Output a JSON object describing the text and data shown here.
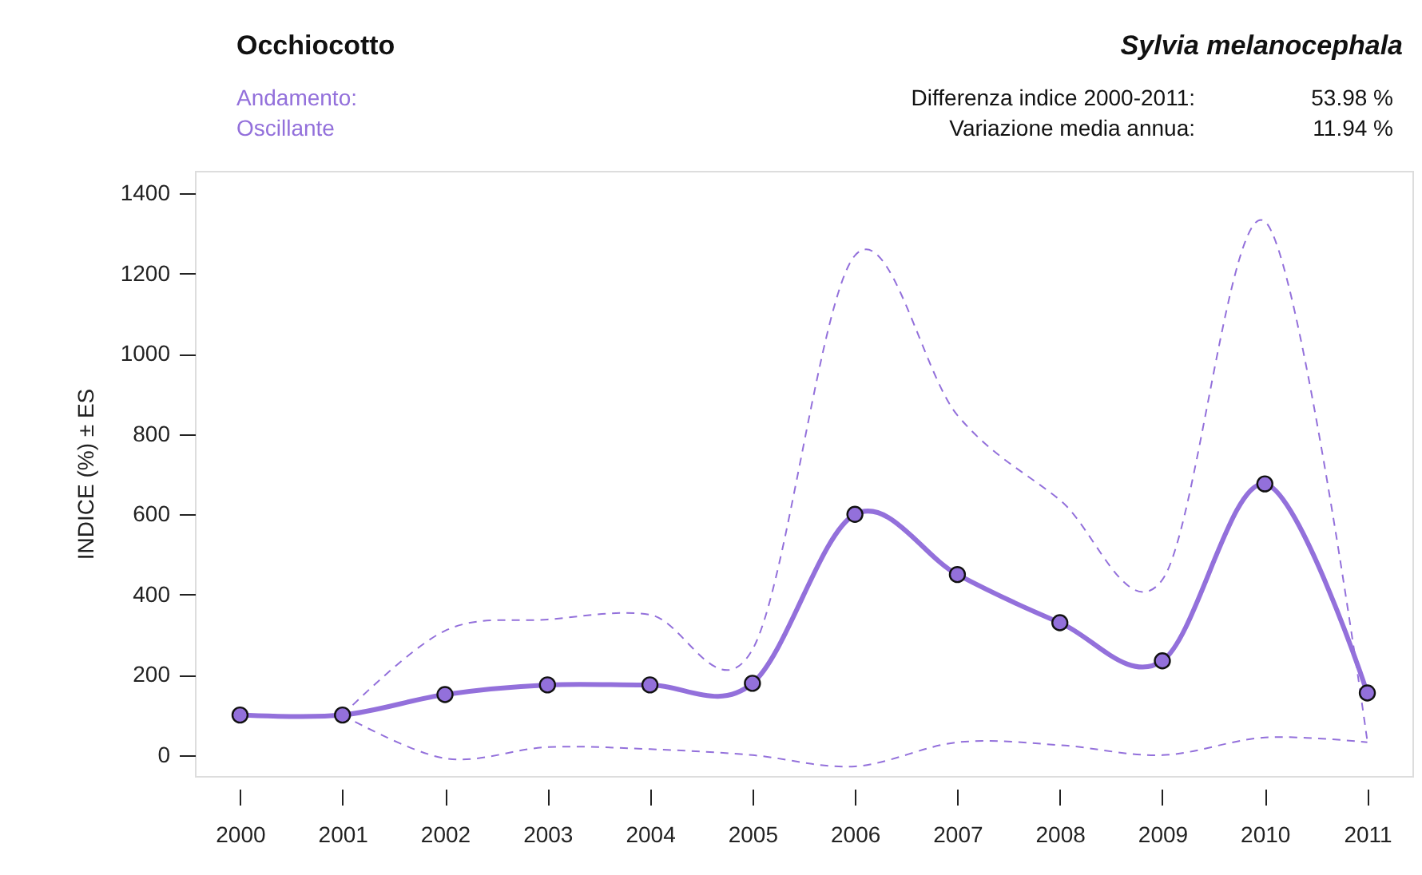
{
  "chart_data": {
    "type": "line",
    "title": "Occhiocotto",
    "subtitle": "Sylvia melanocephala",
    "ylabel": "INDICE (%) ± ES",
    "annotations": [
      "Andamento:",
      "Oscillante",
      "Differenza indice 2000-2011:",
      "53.98 %",
      "Variazione media annua:",
      "11.94 %"
    ],
    "x": [
      2000,
      2001,
      2002,
      2003,
      2004,
      2005,
      2006,
      2007,
      2008,
      2009,
      2010,
      2011
    ],
    "series": [
      {
        "color": "#9370db",
        "line_style": "dashed",
        "marker": "none",
        "x": [
          2001,
          2002,
          2003,
          2004,
          2005,
          2006,
          2007,
          2008,
          2009,
          2010,
          2011
        ],
        "values": [
          100,
          310,
          338,
          350,
          263,
          1245,
          847,
          636,
          437,
          1330,
          35
        ]
      },
      {
        "color": "#9370db",
        "line_style": "dashed",
        "marker": "none",
        "x": [
          2001,
          2002,
          2003,
          2004,
          2005,
          2006,
          2007,
          2008,
          2009,
          2010,
          2011
        ],
        "values": [
          100,
          -8,
          20,
          15,
          0,
          -28,
          32,
          25,
          0,
          44,
          32
        ]
      },
      {
        "color": "#9370db",
        "values": [
          100,
          100,
          151,
          175,
          175,
          179,
          600,
          450,
          330,
          235,
          676,
          155
        ]
      }
    ],
    "xlim": [
      1999.56,
      2011.44
    ],
    "ylim": [
      -52,
      1456
    ],
    "xticks": [
      2000,
      2001,
      2002,
      2003,
      2004,
      2005,
      2006,
      2007,
      2008,
      2009,
      2010,
      2011
    ],
    "yticks": [
      0,
      200,
      400,
      600,
      800,
      1000,
      1200,
      1400
    ],
    "grid": false,
    "marker": "circle",
    "line_style": "solid"
  }
}
